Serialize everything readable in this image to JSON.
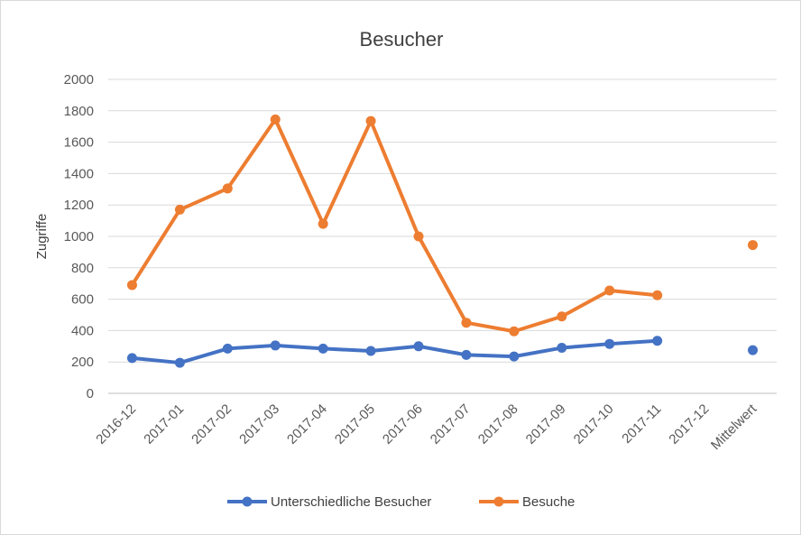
{
  "chart_data": {
    "type": "line",
    "title": "Besucher",
    "xlabel": "",
    "ylabel": "Zugriffe",
    "ylim": [
      0,
      2000
    ],
    "yticks": [
      0,
      200,
      400,
      600,
      800,
      1000,
      1200,
      1400,
      1600,
      1800,
      2000
    ],
    "grid": true,
    "legend_position": "bottom",
    "categories": [
      "2016-12",
      "2017-01",
      "2017-02",
      "2017-03",
      "2017-04",
      "2017-05",
      "2017-06",
      "2017-07",
      "2017-08",
      "2017-09",
      "2017-10",
      "2017-11",
      "2017-12",
      "Mittelwert"
    ],
    "series": [
      {
        "name": "Unterschiedliche Besucher",
        "color": "#4472c4",
        "values": [
          225,
          195,
          285,
          305,
          285,
          270,
          300,
          245,
          235,
          290,
          315,
          335,
          null,
          275
        ],
        "segments": [
          [
            0,
            11
          ]
        ]
      },
      {
        "name": "Besuche",
        "color": "#ed7d31",
        "values": [
          690,
          1170,
          1305,
          1745,
          1080,
          1735,
          1000,
          450,
          395,
          490,
          655,
          625,
          null,
          945
        ],
        "segments": [
          [
            0,
            11
          ]
        ]
      }
    ]
  }
}
